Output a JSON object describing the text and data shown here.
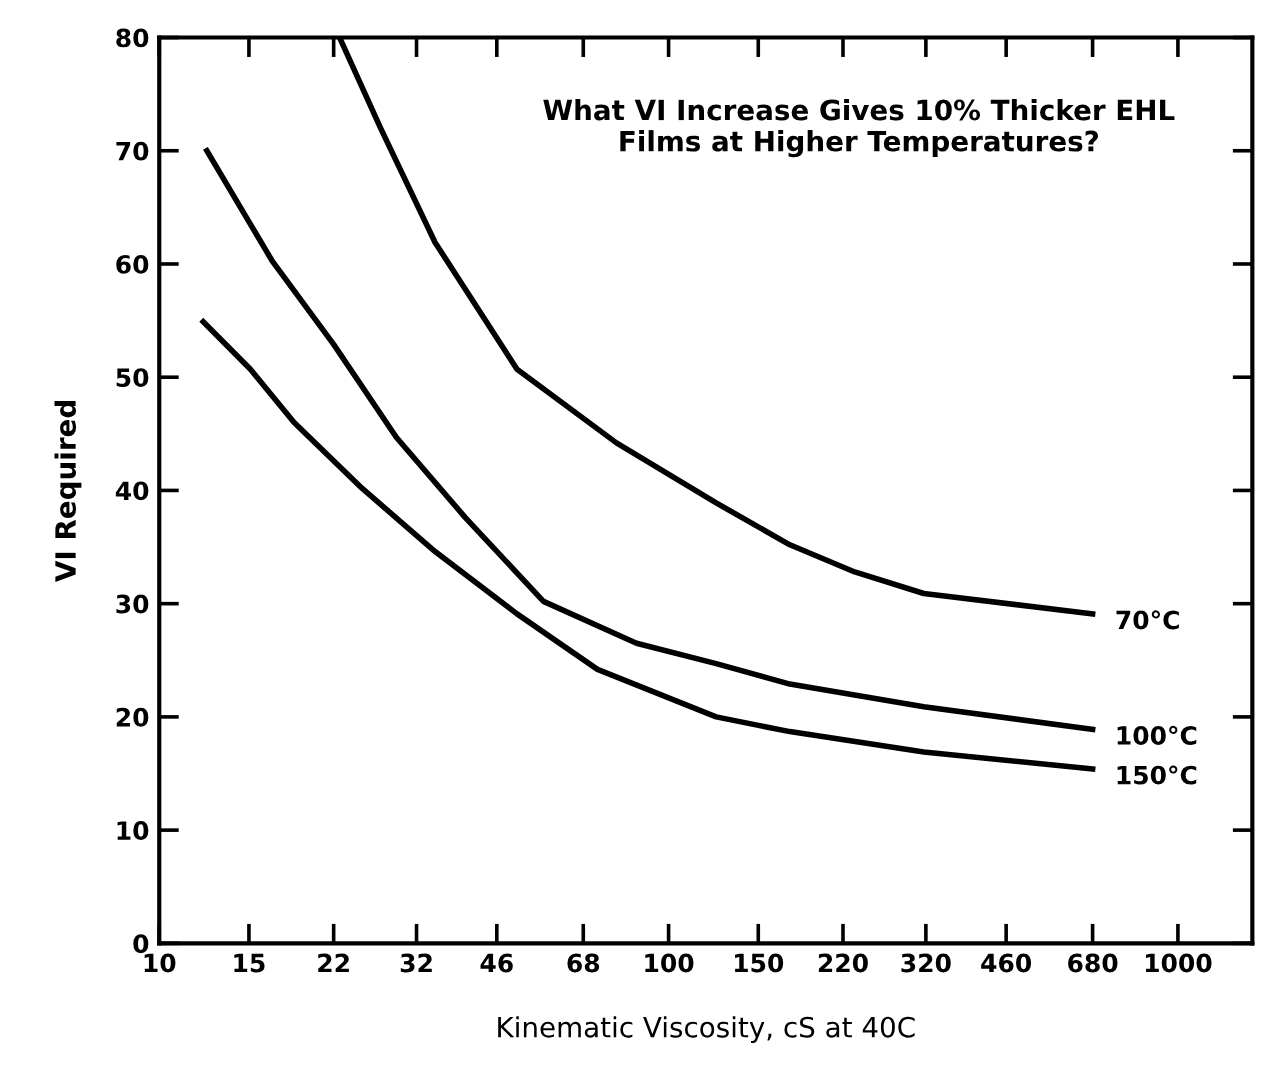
{
  "chart_data": {
    "type": "line",
    "title": "What VI Increase Gives 10% Thicker EHL\nFilms at Higher Temperatures?",
    "xlabel": "Kinematic Viscosity, cS at 40C",
    "ylabel": "VI Required",
    "log": "x",
    "xlim": [
      10,
      1400
    ],
    "xticks": [
      10,
      15,
      22,
      32,
      46,
      68,
      100,
      150,
      220,
      320,
      460,
      680,
      1000
    ],
    "ylim": [
      0,
      80
    ],
    "yticks": [
      0,
      10,
      20,
      30,
      40,
      50,
      60,
      70,
      80
    ],
    "grid": false,
    "legend": "right",
    "marker": "none",
    "line_style": "solid",
    "series": [
      {
        "name": "70°C",
        "color": "#000000",
        "x": [
          22.6,
          27.2,
          34.8,
          50.4,
          79,
          124,
          173,
          232,
          317,
          680
        ],
        "values": [
          80,
          72.0,
          61.9,
          50.7,
          44.2,
          38.9,
          35.2,
          32.8,
          30.9,
          29.1
        ]
      },
      {
        "name": "100°C",
        "color": "#000000",
        "x": [
          12.4,
          16.7,
          22,
          29.2,
          39.9,
          56.8,
          86.5,
          124,
          173,
          317,
          680
        ],
        "values": [
          70,
          60.2,
          52.9,
          44.7,
          37.6,
          30.2,
          26.5,
          24.7,
          22.9,
          20.9,
          18.9
        ]
      },
      {
        "name": "150°C",
        "color": "#000000",
        "x": [
          12.2,
          15.1,
          18.4,
          25.0,
          34.8,
          50.4,
          72.5,
          124,
          173,
          317,
          680
        ],
        "values": [
          54.9,
          50.7,
          46.0,
          40.2,
          34.6,
          29.1,
          24.2,
          20,
          18.7,
          16.9,
          15.4
        ]
      }
    ]
  }
}
